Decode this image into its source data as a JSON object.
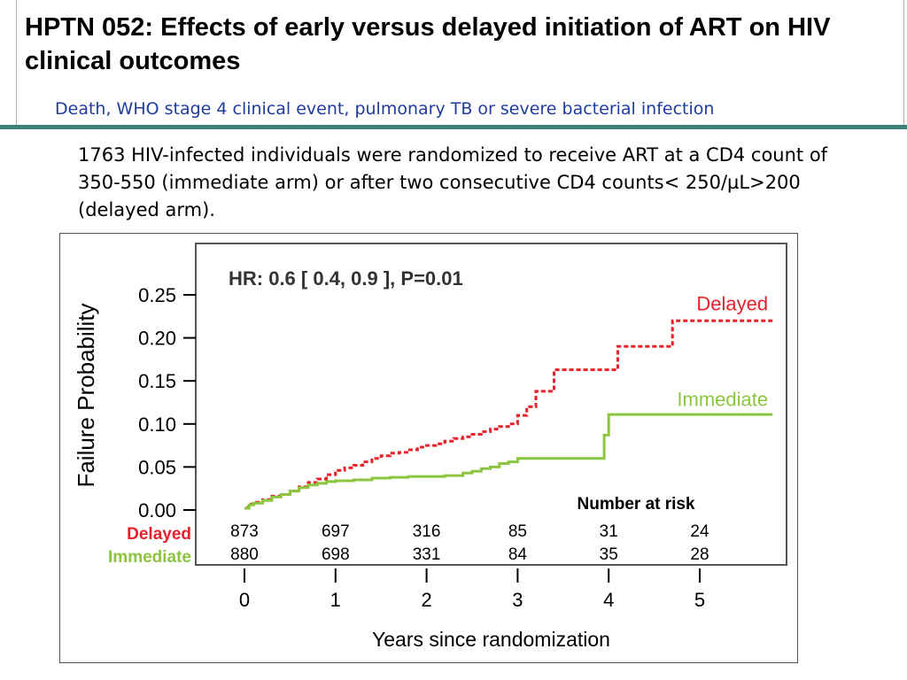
{
  "slide": {
    "title": "HPTN 052: Effects of early versus delayed initiation of ART on HIV clinical outcomes",
    "subtitle": "Death, WHO stage 4 clinical event, pulmonary TB or severe bacterial infection",
    "description": "1763 HIV-infected individuals were randomized to receive ART at a CD4 count of 350-550 (immediate arm) or after two consecutive CD4 counts< 250/µL>200 (delayed arm)."
  },
  "chart_data": {
    "type": "line",
    "step": true,
    "xlabel": "Years since randomization",
    "ylabel": "Failure Probability",
    "xlim": [
      0,
      5.8
    ],
    "ylim": [
      0,
      0.25
    ],
    "x_ticks": [
      0,
      1,
      2,
      3,
      4,
      5
    ],
    "x_tick_labels": [
      "0",
      "1",
      "2",
      "3",
      "4",
      "5"
    ],
    "y_ticks": [
      0.0,
      0.05,
      0.1,
      0.15,
      0.2,
      0.25
    ],
    "y_tick_labels": [
      "0.00",
      "0.05",
      "0.10",
      "0.15",
      "0.20",
      "0.25"
    ],
    "grid": false,
    "annotation": "HR: 0.6 [ 0.4, 0.9 ], P=0.01",
    "series": [
      {
        "name": "Delayed",
        "color": "#e8202a",
        "dash": true,
        "label_xy": [
          5.75,
          0.232
        ],
        "x": [
          0.02,
          0.05,
          0.1,
          0.2,
          0.3,
          0.4,
          0.5,
          0.6,
          0.7,
          0.8,
          0.9,
          1.0,
          1.1,
          1.2,
          1.3,
          1.4,
          1.5,
          1.6,
          1.7,
          1.8,
          1.9,
          2.0,
          2.1,
          2.2,
          2.3,
          2.4,
          2.5,
          2.6,
          2.7,
          2.8,
          2.9,
          3.0,
          3.1,
          3.2,
          3.3,
          3.4,
          3.5,
          3.6,
          3.7,
          3.8,
          3.9,
          4.1,
          4.2,
          4.3,
          4.4,
          4.5,
          4.6,
          4.7,
          4.8,
          4.9,
          5.0,
          5.1,
          5.2,
          5.4,
          5.6,
          5.8
        ],
        "values": [
          0.003,
          0.007,
          0.009,
          0.012,
          0.016,
          0.018,
          0.022,
          0.027,
          0.032,
          0.036,
          0.041,
          0.046,
          0.049,
          0.052,
          0.056,
          0.06,
          0.063,
          0.066,
          0.067,
          0.07,
          0.073,
          0.075,
          0.077,
          0.08,
          0.083,
          0.085,
          0.088,
          0.091,
          0.094,
          0.097,
          0.1,
          0.11,
          0.12,
          0.138,
          0.138,
          0.163,
          0.163,
          0.163,
          0.163,
          0.163,
          0.163,
          0.19,
          0.19,
          0.19,
          0.19,
          0.19,
          0.19,
          0.22,
          0.22,
          0.22,
          0.22,
          0.22,
          0.22,
          0.22,
          0.22,
          0.22
        ]
      },
      {
        "name": "Immediate",
        "color": "#8cc63f",
        "dash": false,
        "label_xy": [
          5.75,
          0.121
        ],
        "x": [
          0.0,
          0.05,
          0.1,
          0.2,
          0.3,
          0.4,
          0.5,
          0.6,
          0.7,
          0.8,
          0.9,
          1.0,
          1.2,
          1.4,
          1.6,
          1.8,
          2.0,
          2.2,
          2.4,
          2.5,
          2.6,
          2.7,
          2.8,
          2.9,
          3.0,
          3.1,
          3.2,
          3.3,
          3.4,
          3.5,
          3.6,
          3.7,
          3.8,
          3.9,
          3.95,
          4.0,
          4.1,
          4.2,
          4.4,
          4.6,
          4.8,
          5.0,
          5.2,
          5.4,
          5.6,
          5.8
        ],
        "values": [
          0.002,
          0.006,
          0.008,
          0.011,
          0.015,
          0.018,
          0.022,
          0.026,
          0.029,
          0.031,
          0.033,
          0.034,
          0.035,
          0.037,
          0.038,
          0.039,
          0.039,
          0.04,
          0.043,
          0.045,
          0.048,
          0.05,
          0.054,
          0.056,
          0.06,
          0.06,
          0.06,
          0.06,
          0.06,
          0.06,
          0.06,
          0.06,
          0.06,
          0.06,
          0.087,
          0.111,
          0.111,
          0.111,
          0.111,
          0.111,
          0.111,
          0.111,
          0.111,
          0.111,
          0.111,
          0.111
        ]
      }
    ],
    "risk_table": {
      "title": "Number at risk",
      "times": [
        0,
        1,
        2,
        3,
        4,
        5
      ],
      "rows": [
        {
          "label": "Delayed",
          "color": "#e8202a",
          "values": [
            "873",
            "697",
            "316",
            "85",
            "31",
            "24"
          ]
        },
        {
          "label": "Immediate",
          "color": "#8cc63f",
          "values": [
            "880",
            "698",
            "331",
            "84",
            "35",
            "28"
          ]
        }
      ]
    }
  }
}
